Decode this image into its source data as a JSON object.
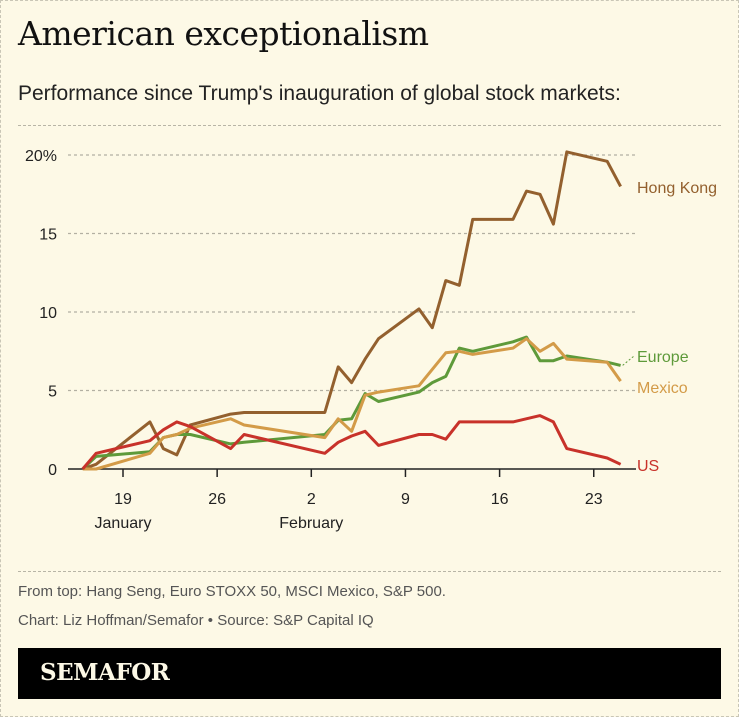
{
  "title": "American exceptionalism",
  "subtitle": "Performance since Trump's inauguration of global stock markets:",
  "notes": {
    "line1": "From top: Hang Seng, Euro STOXX 50, MSCI Mexico, S&P 500.",
    "line2": "Chart: Liz Hoffman/Semafor • Source: S&P Capital IQ"
  },
  "logo": "SEMAFOR",
  "chart_data": {
    "type": "line",
    "title": "",
    "xlabel": "",
    "ylabel": "",
    "ylim": [
      0,
      20
    ],
    "xlim": [
      "Jan 16",
      "Feb 25"
    ],
    "grid": true,
    "y_ticks": [
      {
        "value": 0,
        "label": "0"
      },
      {
        "value": 5,
        "label": "5"
      },
      {
        "value": 10,
        "label": "10"
      },
      {
        "value": 15,
        "label": "15"
      },
      {
        "value": 20,
        "label": "20%"
      }
    ],
    "x_ticks": [
      {
        "date": "Jan 19",
        "label": "19",
        "month": "January"
      },
      {
        "date": "Jan 26",
        "label": "26",
        "month": ""
      },
      {
        "date": "Feb 2",
        "label": "2",
        "month": "February"
      },
      {
        "date": "Feb 9",
        "label": "9",
        "month": ""
      },
      {
        "date": "Feb 16",
        "label": "16",
        "month": ""
      },
      {
        "date": "Feb 23",
        "label": "23",
        "month": ""
      }
    ],
    "series": [
      {
        "name": "Hong Kong",
        "color": "#93602e",
        "points": [
          [
            "Jan 16",
            0
          ],
          [
            "Jan 17",
            0.3
          ],
          [
            "Jan 21",
            3.0
          ],
          [
            "Jan 22",
            1.3
          ],
          [
            "Jan 23",
            0.9
          ],
          [
            "Jan 24",
            2.8
          ],
          [
            "Jan 27",
            3.5
          ],
          [
            "Jan 28",
            3.6
          ],
          [
            "Feb 3",
            3.6
          ],
          [
            "Feb 4",
            6.5
          ],
          [
            "Feb 5",
            5.5
          ],
          [
            "Feb 6",
            7.0
          ],
          [
            "Feb 7",
            8.3
          ],
          [
            "Feb 10",
            10.2
          ],
          [
            "Feb 11",
            9.0
          ],
          [
            "Feb 12",
            12.0
          ],
          [
            "Feb 13",
            11.7
          ],
          [
            "Feb 14",
            15.9
          ],
          [
            "Feb 17",
            15.9
          ],
          [
            "Feb 18",
            17.7
          ],
          [
            "Feb 19",
            17.5
          ],
          [
            "Feb 20",
            15.6
          ],
          [
            "Feb 21",
            20.2
          ],
          [
            "Feb 24",
            19.6
          ],
          [
            "Feb 25",
            18.0
          ]
        ]
      },
      {
        "name": "Europe",
        "color": "#5e9a3a",
        "points": [
          [
            "Jan 16",
            0
          ],
          [
            "Jan 17",
            0.8
          ],
          [
            "Jan 21",
            1.1
          ],
          [
            "Jan 22",
            2.0
          ],
          [
            "Jan 23",
            2.2
          ],
          [
            "Jan 24",
            2.2
          ],
          [
            "Jan 27",
            1.6
          ],
          [
            "Jan 28",
            1.7
          ],
          [
            "Feb 3",
            2.2
          ],
          [
            "Feb 4",
            3.1
          ],
          [
            "Feb 5",
            3.2
          ],
          [
            "Feb 6",
            4.8
          ],
          [
            "Feb 7",
            4.3
          ],
          [
            "Feb 10",
            4.9
          ],
          [
            "Feb 11",
            5.5
          ],
          [
            "Feb 12",
            5.9
          ],
          [
            "Feb 13",
            7.7
          ],
          [
            "Feb 14",
            7.5
          ],
          [
            "Feb 17",
            8.1
          ],
          [
            "Feb 18",
            8.4
          ],
          [
            "Feb 19",
            6.9
          ],
          [
            "Feb 20",
            6.9
          ],
          [
            "Feb 21",
            7.2
          ],
          [
            "Feb 24",
            6.8
          ],
          [
            "Feb 25",
            6.6
          ]
        ]
      },
      {
        "name": "Mexico",
        "color": "#d39b48",
        "points": [
          [
            "Jan 16",
            0
          ],
          [
            "Jan 17",
            0
          ],
          [
            "Jan 21",
            1.0
          ],
          [
            "Jan 22",
            2.0
          ],
          [
            "Jan 23",
            2.2
          ],
          [
            "Jan 24",
            2.6
          ],
          [
            "Jan 27",
            3.2
          ],
          [
            "Jan 28",
            2.8
          ],
          [
            "Feb 3",
            2.0
          ],
          [
            "Feb 4",
            3.2
          ],
          [
            "Feb 5",
            2.4
          ],
          [
            "Feb 6",
            4.7
          ],
          [
            "Feb 7",
            4.9
          ],
          [
            "Feb 10",
            5.3
          ],
          [
            "Feb 12",
            7.4
          ],
          [
            "Feb 13",
            7.5
          ],
          [
            "Feb 14",
            7.3
          ],
          [
            "Feb 17",
            7.7
          ],
          [
            "Feb 18",
            8.3
          ],
          [
            "Feb 19",
            7.5
          ],
          [
            "Feb 20",
            8.0
          ],
          [
            "Feb 21",
            7.0
          ],
          [
            "Feb 24",
            6.8
          ],
          [
            "Feb 25",
            5.6
          ]
        ]
      },
      {
        "name": "US",
        "color": "#c8322a",
        "points": [
          [
            "Jan 16",
            0
          ],
          [
            "Jan 17",
            1.0
          ],
          [
            "Jan 21",
            1.8
          ],
          [
            "Jan 22",
            2.5
          ],
          [
            "Jan 23",
            3.0
          ],
          [
            "Jan 24",
            2.7
          ],
          [
            "Jan 27",
            1.3
          ],
          [
            "Jan 28",
            2.2
          ],
          [
            "Feb 3",
            1.0
          ],
          [
            "Feb 4",
            1.7
          ],
          [
            "Feb 5",
            2.1
          ],
          [
            "Feb 6",
            2.4
          ],
          [
            "Feb 7",
            1.5
          ],
          [
            "Feb 10",
            2.2
          ],
          [
            "Feb 11",
            2.2
          ],
          [
            "Feb 12",
            1.9
          ],
          [
            "Feb 13",
            3.0
          ],
          [
            "Feb 17",
            3.0
          ],
          [
            "Feb 19",
            3.4
          ],
          [
            "Feb 20",
            3.0
          ],
          [
            "Feb 21",
            1.3
          ],
          [
            "Feb 24",
            0.7
          ],
          [
            "Feb 25",
            0.3
          ]
        ]
      }
    ]
  }
}
